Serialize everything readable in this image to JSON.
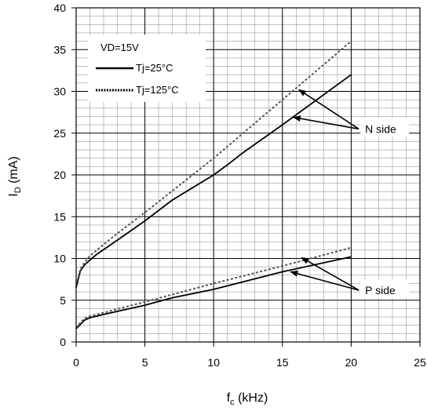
{
  "chart_data": {
    "type": "line",
    "xlabel": "fc (kHz)",
    "xlabel_main": "f",
    "xlabel_sub": "c",
    "xlabel_rest": " (kHz)",
    "ylabel": "ID (mA)",
    "ylabel_main": "I",
    "ylabel_sub": "D",
    "ylabel_rest": " (mA)",
    "xlim": [
      0,
      25
    ],
    "ylim": [
      0,
      40
    ],
    "x_ticks": [
      0,
      5,
      10,
      15,
      20,
      25
    ],
    "y_ticks": [
      0,
      5,
      10,
      15,
      20,
      25,
      30,
      35,
      40
    ],
    "x_tick_labels": [
      "0",
      "5",
      "10",
      "15",
      "20",
      "25"
    ],
    "y_tick_labels": [
      "0",
      "5",
      "10",
      "15",
      "20",
      "25",
      "30",
      "35",
      "40"
    ],
    "grid": true,
    "legend": {
      "title": "VD=15V",
      "position": "top-left",
      "entries": [
        {
          "label": "Tj=25°C",
          "style": "solid"
        },
        {
          "label": "Tj=125°C",
          "style": "dotted"
        }
      ]
    },
    "series": [
      {
        "name": "Tj=25°C",
        "group": "N side",
        "style": "solid",
        "x": [
          0,
          0.3,
          0.6,
          1,
          1.5,
          3,
          5,
          7,
          10,
          11,
          12,
          15,
          20
        ],
        "y": [
          6.5,
          8.5,
          9.2,
          9.8,
          10.5,
          12.2,
          14.5,
          17,
          20,
          21.2,
          22.5,
          26,
          32
        ]
      },
      {
        "name": "Tj=125°C",
        "group": "N side",
        "style": "dotted",
        "x": [
          0,
          0.3,
          0.6,
          1,
          1.5,
          3,
          5,
          10,
          15,
          20
        ],
        "y": [
          6.8,
          8.7,
          9.5,
          10.3,
          11,
          13,
          15.5,
          22,
          29,
          36
        ]
      },
      {
        "name": "Tj=25°C",
        "group": "P side",
        "style": "solid",
        "x": [
          0,
          0.3,
          0.6,
          1,
          2,
          5,
          7,
          10,
          15,
          20
        ],
        "y": [
          1.6,
          2.1,
          2.6,
          2.9,
          3.3,
          4.4,
          5.3,
          6.3,
          8.4,
          10.2
        ]
      },
      {
        "name": "Tj=125°C",
        "group": "P side",
        "style": "dotted",
        "x": [
          0,
          0.3,
          0.6,
          1,
          2,
          5,
          10,
          15,
          20
        ],
        "y": [
          1.7,
          2.3,
          2.8,
          3.1,
          3.5,
          4.8,
          7,
          9.1,
          11.3
        ]
      }
    ],
    "annotations": [
      {
        "text": "N side",
        "anchor": [
          20.9,
          25.5
        ],
        "arrow_targets": [
          [
            16.2,
            30.2
          ],
          [
            15.8,
            26.9
          ]
        ]
      },
      {
        "text": "P side",
        "anchor": [
          20.9,
          6.2
        ],
        "arrow_targets": [
          [
            16.4,
            10.1
          ],
          [
            15.6,
            8.4
          ]
        ]
      }
    ]
  }
}
